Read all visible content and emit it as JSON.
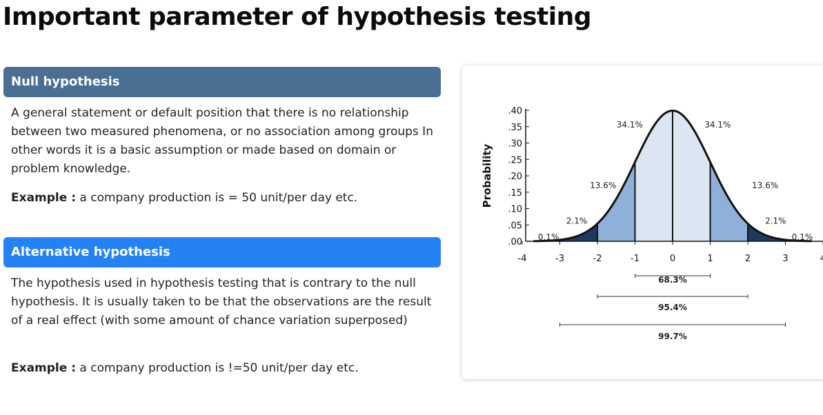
{
  "title": "Important parameter of hypothesis testing",
  "null": {
    "heading": "Null hypothesis",
    "description": "A general statement or default position that there is no relationship between two measured phenomena, or no association among groups In other words it is a basic assumption or made based on domain or problem knowledge.",
    "example_label": "Example :",
    "example_text": " a company production is = 50 unit/per day etc."
  },
  "alternative": {
    "heading": "Alternative hypothesis",
    "description": "The hypothesis used in hypothesis testing that is contrary to the null hypothesis. It is usually taken to be that the observations are the result of a real effect (with some amount of chance variation superposed)",
    "example_label": "Example :",
    "example_text": " a company production is !=50 unit/per day etc."
  },
  "colors": {
    "null_bar": "#4a6f93",
    "alt_bar": "#2482f5",
    "inner_fill": "#dce6f2",
    "mid_fill": "#8fb0d8",
    "outer_fill": "#1f3a5f"
  },
  "chart_data": {
    "type": "area",
    "ylabel": "Probability",
    "y_ticks": [
      ".00",
      ".05",
      ".10",
      ".15",
      ".20",
      ".25",
      ".30",
      ".35",
      ".40"
    ],
    "x_ticks": [
      "-4",
      "-3",
      "-2",
      "-1",
      "0",
      "1",
      "2",
      "3",
      "4"
    ],
    "xlim": [
      -4,
      4
    ],
    "ylim": [
      0,
      0.4
    ],
    "distribution": "standard normal",
    "region_labels": [
      {
        "text": "0.1%",
        "x": -3.5
      },
      {
        "text": "2.1%",
        "x": -2.5
      },
      {
        "text": "13.6%",
        "x": -1.5
      },
      {
        "text": "34.1%",
        "x": -0.5
      },
      {
        "text": "34.1%",
        "x": 0.5
      },
      {
        "text": "13.6%",
        "x": 1.5
      },
      {
        "text": "2.1%",
        "x": 2.5
      },
      {
        "text": "0.1%",
        "x": 3.5
      }
    ],
    "ranges": [
      {
        "label": "68.3%",
        "from": -1,
        "to": 1
      },
      {
        "label": "95.4%",
        "from": -2,
        "to": 2
      },
      {
        "label": "99.7%",
        "from": -3,
        "to": 3
      }
    ]
  }
}
